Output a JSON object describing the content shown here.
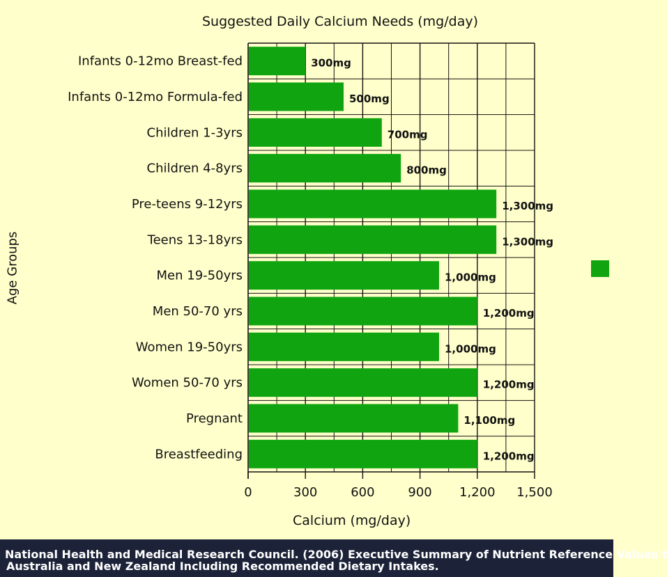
{
  "chart_data": {
    "type": "bar",
    "orientation": "horizontal",
    "title": "Suggested Daily Calcium Needs (mg/day)",
    "xlabel": "Calcium  (mg/day)",
    "ylabel": "Age Groups",
    "xlim": [
      0,
      1500
    ],
    "xticks": [
      0,
      300,
      600,
      900,
      1200,
      1500
    ],
    "xtick_labels": [
      "0",
      "300",
      "600",
      "900",
      "1,200",
      "1,500"
    ],
    "grid": true,
    "bar_color": "#10a510",
    "categories": [
      "Infants 0-12mo Breast-fed",
      "Infants 0-12mo Formula-fed",
      "Children 1-3yrs",
      "Children 4-8yrs",
      "Pre-teens 9-12yrs",
      "Teens 13-18yrs",
      "Men 19-50yrs",
      "Men 50-70 yrs",
      "Women 19-50yrs",
      "Women 50-70 yrs",
      "Pregnant",
      "Breastfeeding"
    ],
    "values": [
      300,
      500,
      700,
      800,
      1300,
      1300,
      1000,
      1200,
      1000,
      1200,
      1100,
      1200
    ],
    "data_labels": [
      "300mg",
      "500mg",
      "700mg",
      "800mg",
      "1,300mg",
      "1,300mg",
      "1,000mg",
      "1,200mg",
      "1,000mg",
      "1,200mg",
      "1,100mg",
      "1,200mg"
    ],
    "legend": {
      "placement": "right",
      "color": "#10a510"
    }
  },
  "footer": {
    "line1": "National Health and Medical Research Council. (2006) Executive Summary of Nutrient Reference Values t",
    "line2": "Australia and New Zealand Including Recommended Dietary Intakes."
  },
  "colors": {
    "background": "#ffffcc",
    "bar": "#10a510",
    "footer_background": "#1c2238",
    "footer_text": "#ffffff"
  }
}
